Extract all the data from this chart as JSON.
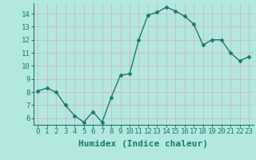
{
  "x": [
    0,
    1,
    2,
    3,
    4,
    5,
    6,
    7,
    8,
    9,
    10,
    11,
    12,
    13,
    14,
    15,
    16,
    17,
    18,
    19,
    20,
    21,
    22,
    23
  ],
  "y": [
    8.1,
    8.3,
    8.0,
    7.0,
    6.2,
    5.7,
    6.5,
    5.7,
    7.6,
    9.3,
    9.4,
    12.0,
    13.9,
    14.1,
    14.5,
    14.2,
    13.8,
    13.2,
    11.6,
    12.0,
    12.0,
    11.0,
    10.4,
    10.7
  ],
  "xlabel": "Humidex (Indice chaleur)",
  "ylim": [
    5.5,
    14.8
  ],
  "xlim": [
    -0.5,
    23.5
  ],
  "yticks": [
    6,
    7,
    8,
    9,
    10,
    11,
    12,
    13,
    14
  ],
  "xticks": [
    0,
    1,
    2,
    3,
    4,
    5,
    6,
    7,
    8,
    9,
    10,
    11,
    12,
    13,
    14,
    15,
    16,
    17,
    18,
    19,
    20,
    21,
    22,
    23
  ],
  "line_color": "#1a7a6e",
  "marker": "D",
  "marker_size": 2.5,
  "bg_color": "#b2e8e0",
  "grid_color": "#d0b8b8",
  "xlabel_fontsize": 8,
  "tick_fontsize": 6.5,
  "fig_width": 3.2,
  "fig_height": 2.0,
  "dpi": 100
}
